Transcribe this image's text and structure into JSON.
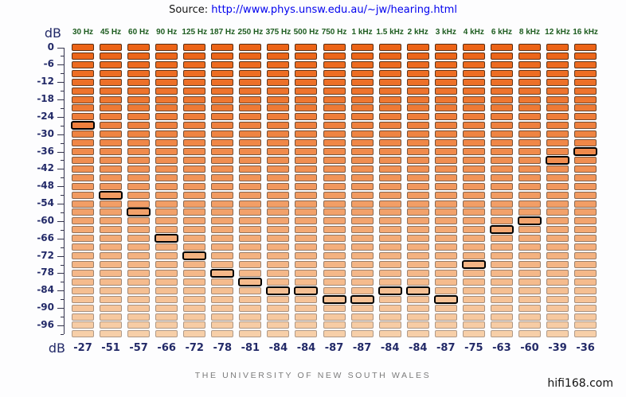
{
  "source": {
    "label": "Source:",
    "url": "http://www.phys.unsw.edu.au/~jw/hearing.html"
  },
  "axis": {
    "unit_top": "dB",
    "unit_bottom": "dB"
  },
  "chart_data": {
    "type": "bar",
    "subtype": "segmented-threshold-equalizer",
    "categories": [
      "30 Hz",
      "45 Hz",
      "60 Hz",
      "90 Hz",
      "125 Hz",
      "187 Hz",
      "250 Hz",
      "375 Hz",
      "500 Hz",
      "750 Hz",
      "1 kHz",
      "1.5 kHz",
      "2 kHz",
      "3 kHz",
      "4 kHz",
      "6 kHz",
      "8 kHz",
      "12 kHz",
      "16 kHz"
    ],
    "values": [
      -27,
      -51,
      -57,
      -66,
      -72,
      -78,
      -81,
      -84,
      -84,
      -87,
      -87,
      -84,
      -84,
      -87,
      -75,
      -63,
      -60,
      -39,
      -36
    ],
    "value_labels": [
      "-27",
      "-51",
      "-57",
      "-66",
      "-72",
      "-78",
      "-81",
      "-84",
      "-84",
      "-87",
      "-87",
      "-84",
      "-84",
      "-87",
      "-75",
      "-63",
      "-60",
      "-39",
      "-36"
    ],
    "ylabel": "dB",
    "ylim": [
      -99,
      0
    ],
    "segment_step_db": 3,
    "ytick_label_step_db": 6,
    "ytick_labels": [
      "0",
      "-6",
      "-12",
      "-18",
      "-24",
      "-30",
      "-36",
      "-42",
      "-48",
      "-54",
      "-60",
      "-66",
      "-72",
      "-78",
      "-84",
      "-90",
      "-96"
    ],
    "rows_per_column": 34,
    "grid": false,
    "legend": false,
    "colors": {
      "segment_top": "#ec6316",
      "segment_bottom": "#f7cfa8",
      "segment_border_top": "#5a2d10",
      "segment_border_bottom": "#b09a88",
      "highlight_border": "#000000",
      "axis_text": "#232a68",
      "category_text": "#1d5c1f",
      "link": "#2323a8",
      "footer_text": "#7b7b7b"
    }
  },
  "footer": {
    "university": "THE UNIVERSITY OF NEW SOUTH WALES",
    "watermark": "hifi168.com"
  }
}
